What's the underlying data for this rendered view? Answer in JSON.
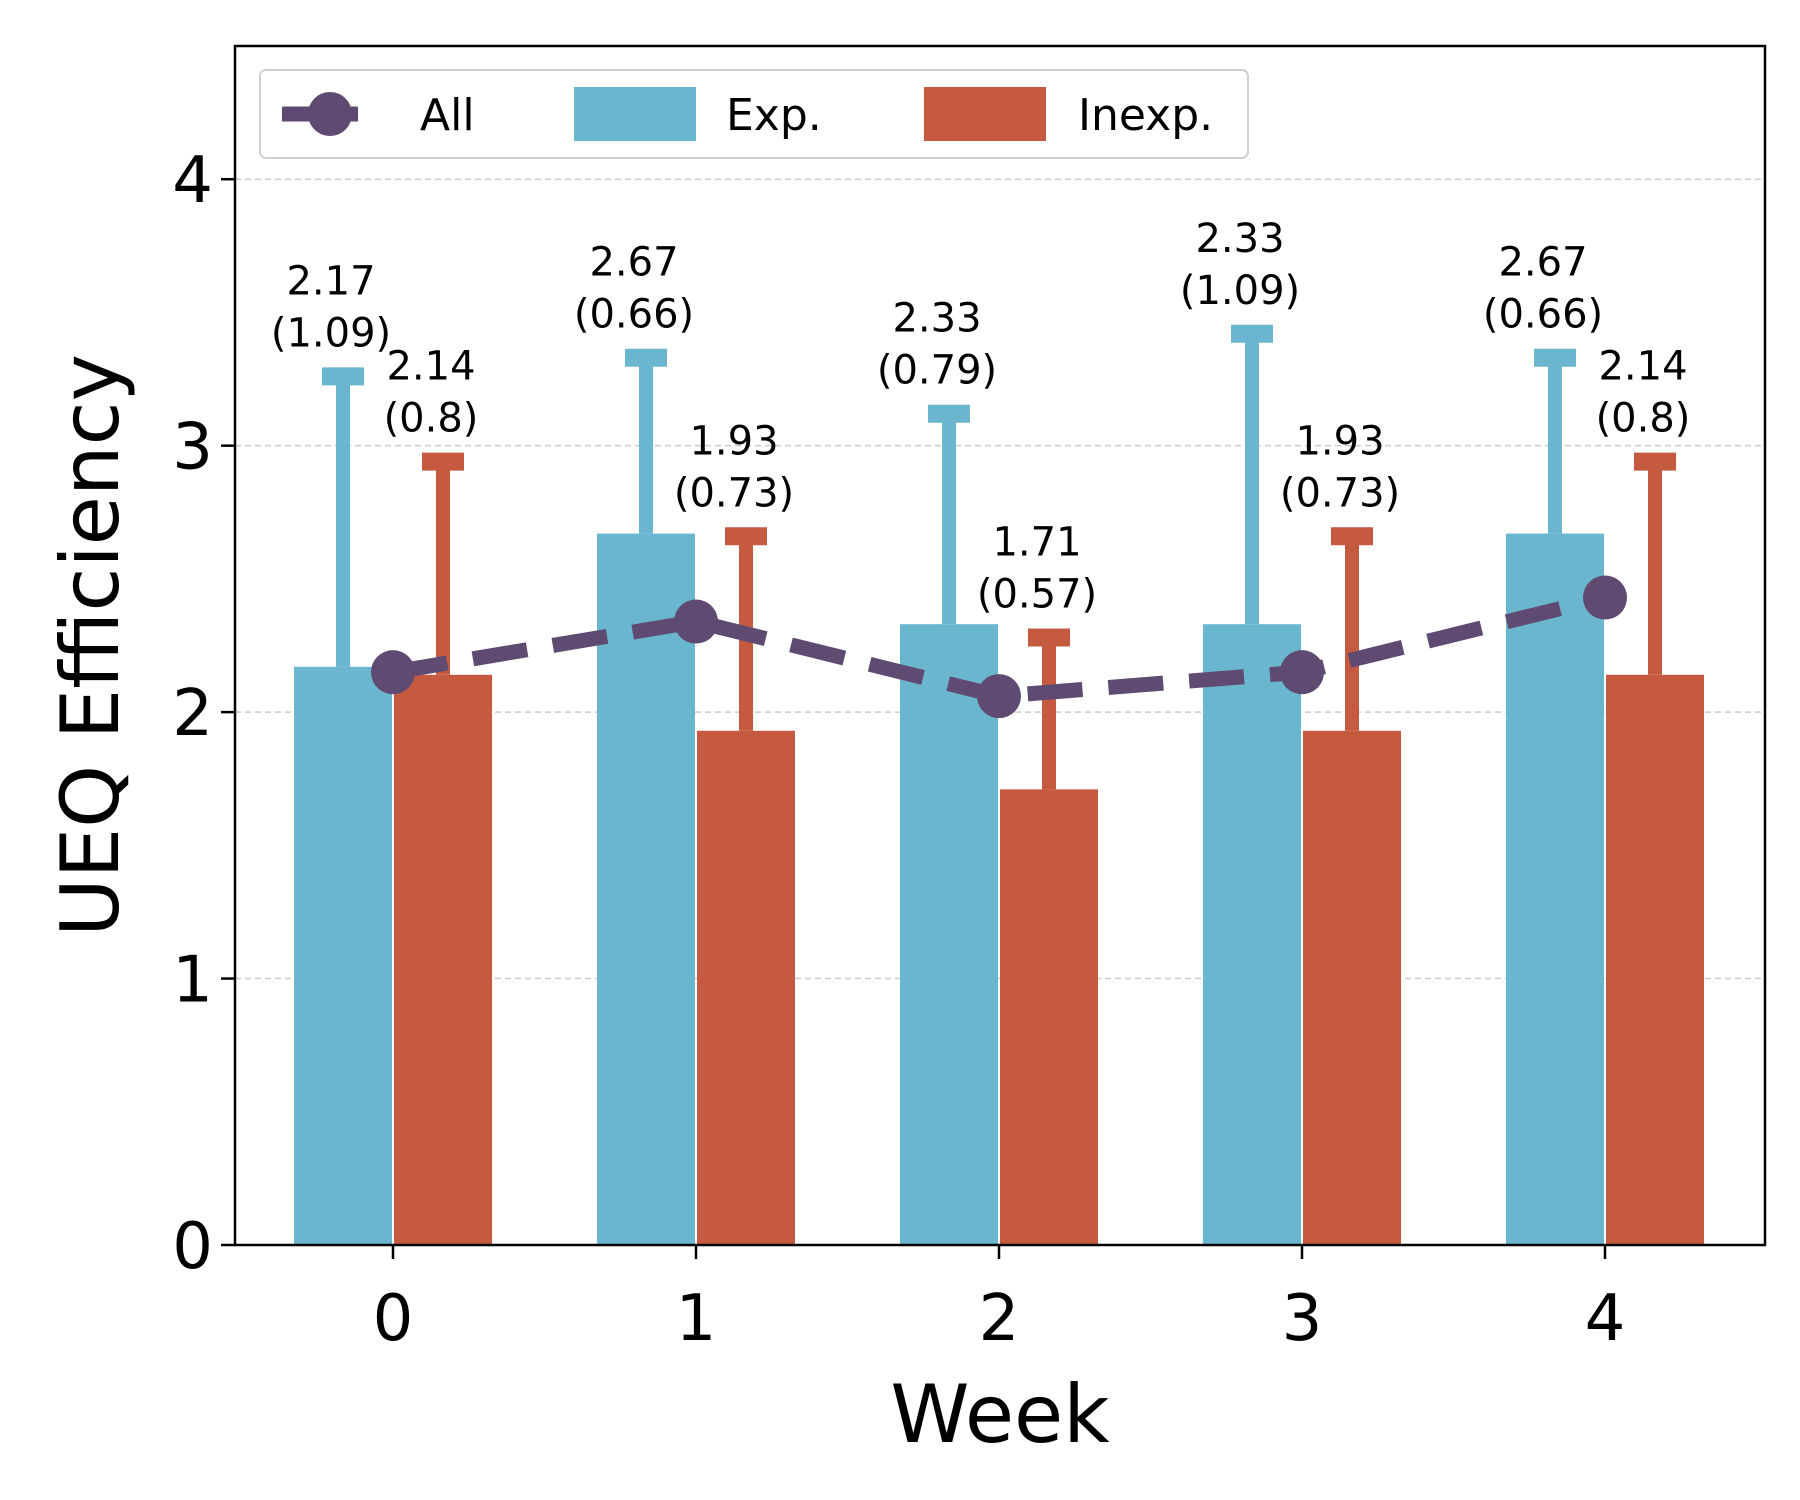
{
  "chart_data": {
    "type": "bar",
    "title": "",
    "xlabel": "Week",
    "ylabel": "UEQ Efficiency",
    "categories": [
      "0",
      "1",
      "2",
      "3",
      "4"
    ],
    "ylim": [
      0,
      4.5
    ],
    "yticks": [
      "0",
      "1",
      "2",
      "3",
      "4"
    ],
    "grid": true,
    "legend_position": "top-left",
    "series": [
      {
        "name": "All",
        "kind": "line",
        "style": "dashed",
        "color": "#5f4a72",
        "values": [
          2.15,
          2.34,
          2.06,
          2.15,
          2.43
        ]
      },
      {
        "name": "Exp.",
        "kind": "bar",
        "color": "#6bb6cf",
        "values": [
          2.17,
          2.67,
          2.33,
          2.33,
          2.67
        ],
        "errors": [
          1.09,
          0.66,
          0.79,
          1.09,
          0.66
        ],
        "labels": [
          [
            "2.17",
            "(1.09)"
          ],
          [
            "2.67",
            "(0.66)"
          ],
          [
            "2.33",
            "(0.79)"
          ],
          [
            "2.33",
            "(1.09)"
          ],
          [
            "2.67",
            "(0.66)"
          ]
        ]
      },
      {
        "name": "Inexp.",
        "kind": "bar",
        "color": "#c55a40",
        "values": [
          2.14,
          1.93,
          1.71,
          1.93,
          2.14
        ],
        "errors": [
          0.8,
          0.73,
          0.57,
          0.73,
          0.8
        ],
        "labels": [
          [
            "2.14",
            "(0.8)"
          ],
          [
            "1.93",
            "(0.73)"
          ],
          [
            "1.71",
            "(0.57)"
          ],
          [
            "1.93",
            "(0.73)"
          ],
          [
            "2.14",
            "(0.8)"
          ]
        ]
      }
    ]
  }
}
